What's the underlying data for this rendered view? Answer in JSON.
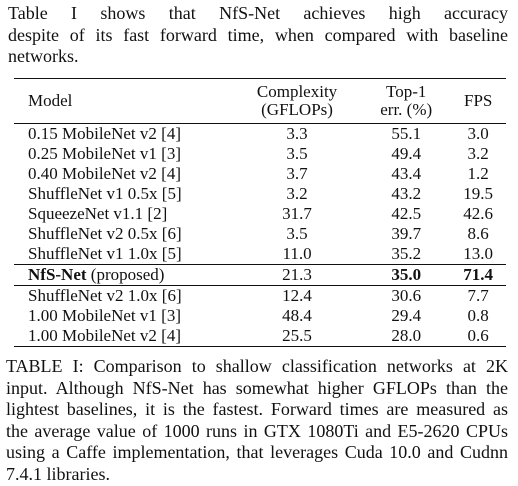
{
  "intro": {
    "lines": [
      "Table    I shows that NfS-Net achieves high accuracy",
      "despite of its fast forward time, when compared with baseline",
      "networks."
    ]
  },
  "table": {
    "headers": {
      "model": "Model",
      "complexity_1": "Complexity",
      "complexity_2": "(GFLOPs)",
      "top1_1": "Top-1",
      "top1_2": "err. (%)",
      "fps": "FPS"
    },
    "rows": [
      {
        "model": "0.15 MobileNet v2 [4]",
        "complexity": "3.3",
        "top1": "55.1",
        "fps": "3.0"
      },
      {
        "model": "0.25 MobileNet v1 [3]",
        "complexity": "3.5",
        "top1": "49.4",
        "fps": "3.2"
      },
      {
        "model": "0.40 MobileNet v2 [4]",
        "complexity": "3.7",
        "top1": "43.4",
        "fps": "1.2"
      },
      {
        "model": "ShuffleNet v1 0.5x [5]",
        "complexity": "3.2",
        "top1": "43.2",
        "fps": "19.5"
      },
      {
        "model": "SqueezeNet v1.1 [2]",
        "complexity": "31.7",
        "top1": "42.5",
        "fps": "42.6"
      },
      {
        "model": "ShuffleNet v2 0.5x [6]",
        "complexity": "3.5",
        "top1": "39.7",
        "fps": "8.6"
      },
      {
        "model": "ShuffleNet v1 1.0x [5]",
        "complexity": "11.0",
        "top1": "35.2",
        "fps": "13.0"
      },
      {
        "model_bold": "NfS-Net",
        "model_rest": " (proposed)",
        "complexity": "21.3",
        "top1": "35.0",
        "fps": "71.4"
      },
      {
        "model": "ShuffleNet v2 1.0x [6]",
        "complexity": "12.4",
        "top1": "30.6",
        "fps": "7.7"
      },
      {
        "model": "1.00 MobileNet v1 [3]",
        "complexity": "48.4",
        "top1": "29.4",
        "fps": "0.8"
      },
      {
        "model": "1.00 MobileNet v2 [4]",
        "complexity": "25.5",
        "top1": "28.0",
        "fps": "0.6"
      }
    ]
  },
  "caption": {
    "lines": [
      "TABLE I: Comparison to shallow classification networks at 2K",
      "input. Although NfS-Net has somewhat higher GFLOPs than the",
      "lightest baselines, it is the fastest. Forward times are measured as",
      "the average value of 1000 runs in GTX 1080Ti and E5-2620 CPUs",
      "using a Caffe implementation, that leverages Cuda 10.0 and Cudnn",
      "7.4.1 libraries."
    ]
  }
}
